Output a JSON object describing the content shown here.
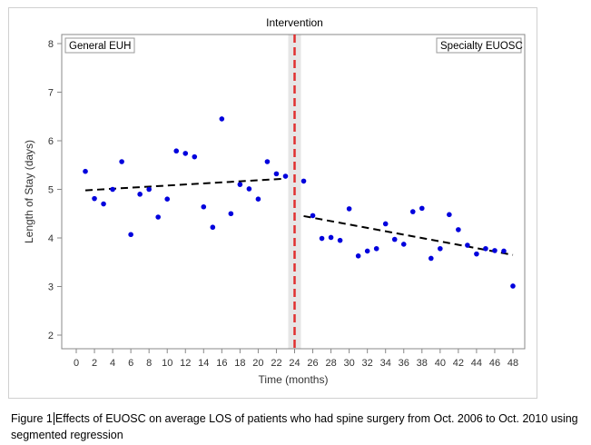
{
  "chart_data": {
    "type": "scatter",
    "title": "",
    "annotation_top": "Intervention",
    "xlabel": "Time (months)",
    "ylabel": "Length of Stay (days)",
    "xlim": [
      -1.5,
      49.5
    ],
    "ylim": [
      1.8,
      8.3
    ],
    "xticks": [
      0,
      2,
      4,
      6,
      8,
      10,
      12,
      14,
      16,
      18,
      20,
      22,
      24,
      26,
      28,
      30,
      32,
      34,
      36,
      38,
      40,
      42,
      44,
      46,
      48
    ],
    "yticks": [
      2,
      3,
      4,
      5,
      6,
      7,
      8
    ],
    "grid": false,
    "inset_labels": {
      "left": "General EUH",
      "right": "Specialty EUOSC"
    },
    "intervention_x": 24,
    "colors": {
      "points": "#0000dd",
      "trend": "#000000",
      "intervention": "#e03030",
      "band": "#e6e6e6"
    },
    "points": [
      [
        1,
        5.37
      ],
      [
        2,
        4.81
      ],
      [
        3,
        4.7
      ],
      [
        4,
        5.0
      ],
      [
        5,
        5.57
      ],
      [
        6,
        4.07
      ],
      [
        7,
        4.9
      ],
      [
        8,
        5.0
      ],
      [
        9,
        4.43
      ],
      [
        10,
        4.8
      ],
      [
        11,
        5.79
      ],
      [
        12,
        5.74
      ],
      [
        13,
        5.67
      ],
      [
        14,
        4.64
      ],
      [
        15,
        4.22
      ],
      [
        16,
        6.45
      ],
      [
        17,
        4.5
      ],
      [
        18,
        5.1
      ],
      [
        19,
        5.01
      ],
      [
        20,
        4.8
      ],
      [
        21,
        5.57
      ],
      [
        22,
        5.32
      ],
      [
        23,
        5.27
      ],
      [
        25,
        5.17
      ],
      [
        26,
        4.46
      ],
      [
        27,
        3.99
      ],
      [
        28,
        4.01
      ],
      [
        29,
        3.95
      ],
      [
        30,
        4.6
      ],
      [
        31,
        3.63
      ],
      [
        32,
        3.73
      ],
      [
        33,
        3.78
      ],
      [
        34,
        4.29
      ],
      [
        35,
        3.97
      ],
      [
        36,
        3.87
      ],
      [
        37,
        4.54
      ],
      [
        38,
        4.61
      ],
      [
        39,
        3.58
      ],
      [
        40,
        3.78
      ],
      [
        41,
        4.48
      ],
      [
        42,
        4.17
      ],
      [
        43,
        3.85
      ],
      [
        44,
        3.67
      ],
      [
        45,
        3.78
      ],
      [
        46,
        3.74
      ],
      [
        47,
        3.73
      ],
      [
        48,
        3.01
      ]
    ],
    "trend_lines": [
      {
        "x": [
          1,
          23
        ],
        "y": [
          4.98,
          5.22
        ]
      },
      {
        "x": [
          25,
          48
        ],
        "y": [
          4.45,
          3.65
        ]
      }
    ]
  },
  "caption": {
    "label": "Figure 1",
    "text": "Effects of EUOSC on average LOS of patients who had spine surgery from Oct. 2006 to Oct. 2010 using segmented regression"
  }
}
